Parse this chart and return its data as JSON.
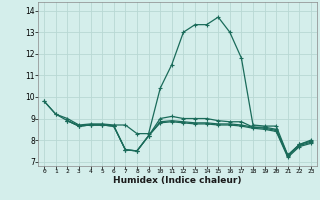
{
  "xlabel": "Humidex (Indice chaleur)",
  "ylabel": "",
  "bg_color": "#d4eeeb",
  "grid_color": "#b8d8d4",
  "line_color": "#1a6b5a",
  "xlim": [
    -0.5,
    23.5
  ],
  "ylim": [
    6.8,
    14.4
  ],
  "xticks": [
    0,
    1,
    2,
    3,
    4,
    5,
    6,
    7,
    8,
    9,
    10,
    11,
    12,
    13,
    14,
    15,
    16,
    17,
    18,
    19,
    20,
    21,
    22,
    23
  ],
  "yticks": [
    7,
    8,
    9,
    10,
    11,
    12,
    13,
    14
  ],
  "line1_x": [
    0,
    1,
    2,
    3,
    4,
    5,
    6,
    7,
    8,
    9,
    10,
    11,
    12,
    13,
    14,
    15,
    16,
    17,
    18,
    19,
    20,
    21,
    22,
    23
  ],
  "line1_y": [
    9.8,
    9.2,
    9.0,
    8.7,
    8.75,
    8.75,
    8.7,
    8.7,
    8.3,
    8.3,
    10.4,
    11.5,
    13.0,
    13.35,
    13.35,
    13.7,
    13.0,
    11.8,
    8.7,
    8.65,
    8.65,
    7.3,
    7.8,
    8.0
  ],
  "line2_x": [
    0,
    1,
    2,
    3,
    4,
    5,
    6,
    7,
    8,
    9,
    10,
    11,
    12,
    13,
    14,
    15,
    16,
    17,
    18,
    19,
    20,
    21,
    22,
    23
  ],
  "line2_y": [
    9.8,
    9.2,
    8.9,
    8.65,
    8.7,
    8.7,
    8.65,
    7.55,
    7.5,
    8.2,
    9.0,
    9.1,
    9.0,
    9.0,
    9.0,
    8.9,
    8.85,
    8.85,
    8.6,
    8.6,
    8.5,
    7.3,
    7.8,
    7.95
  ],
  "line3_x": [
    2,
    3,
    4,
    5,
    6,
    7,
    8,
    9,
    10,
    11,
    12,
    13,
    14,
    15,
    16,
    17,
    18,
    19,
    20,
    21,
    22,
    23
  ],
  "line3_y": [
    8.9,
    8.65,
    8.7,
    8.7,
    8.65,
    7.55,
    7.5,
    8.2,
    8.85,
    8.9,
    8.85,
    8.8,
    8.8,
    8.75,
    8.75,
    8.7,
    8.6,
    8.55,
    8.45,
    7.25,
    7.75,
    7.9
  ],
  "line4_x": [
    2,
    3,
    4,
    5,
    6,
    7,
    8,
    9,
    10,
    11,
    12,
    13,
    14,
    15,
    16,
    17,
    18,
    19,
    20,
    21,
    22,
    23
  ],
  "line4_y": [
    8.9,
    8.65,
    8.7,
    8.7,
    8.65,
    7.55,
    7.5,
    8.2,
    8.8,
    8.85,
    8.8,
    8.75,
    8.75,
    8.7,
    8.7,
    8.65,
    8.55,
    8.5,
    8.4,
    7.2,
    7.7,
    7.85
  ]
}
